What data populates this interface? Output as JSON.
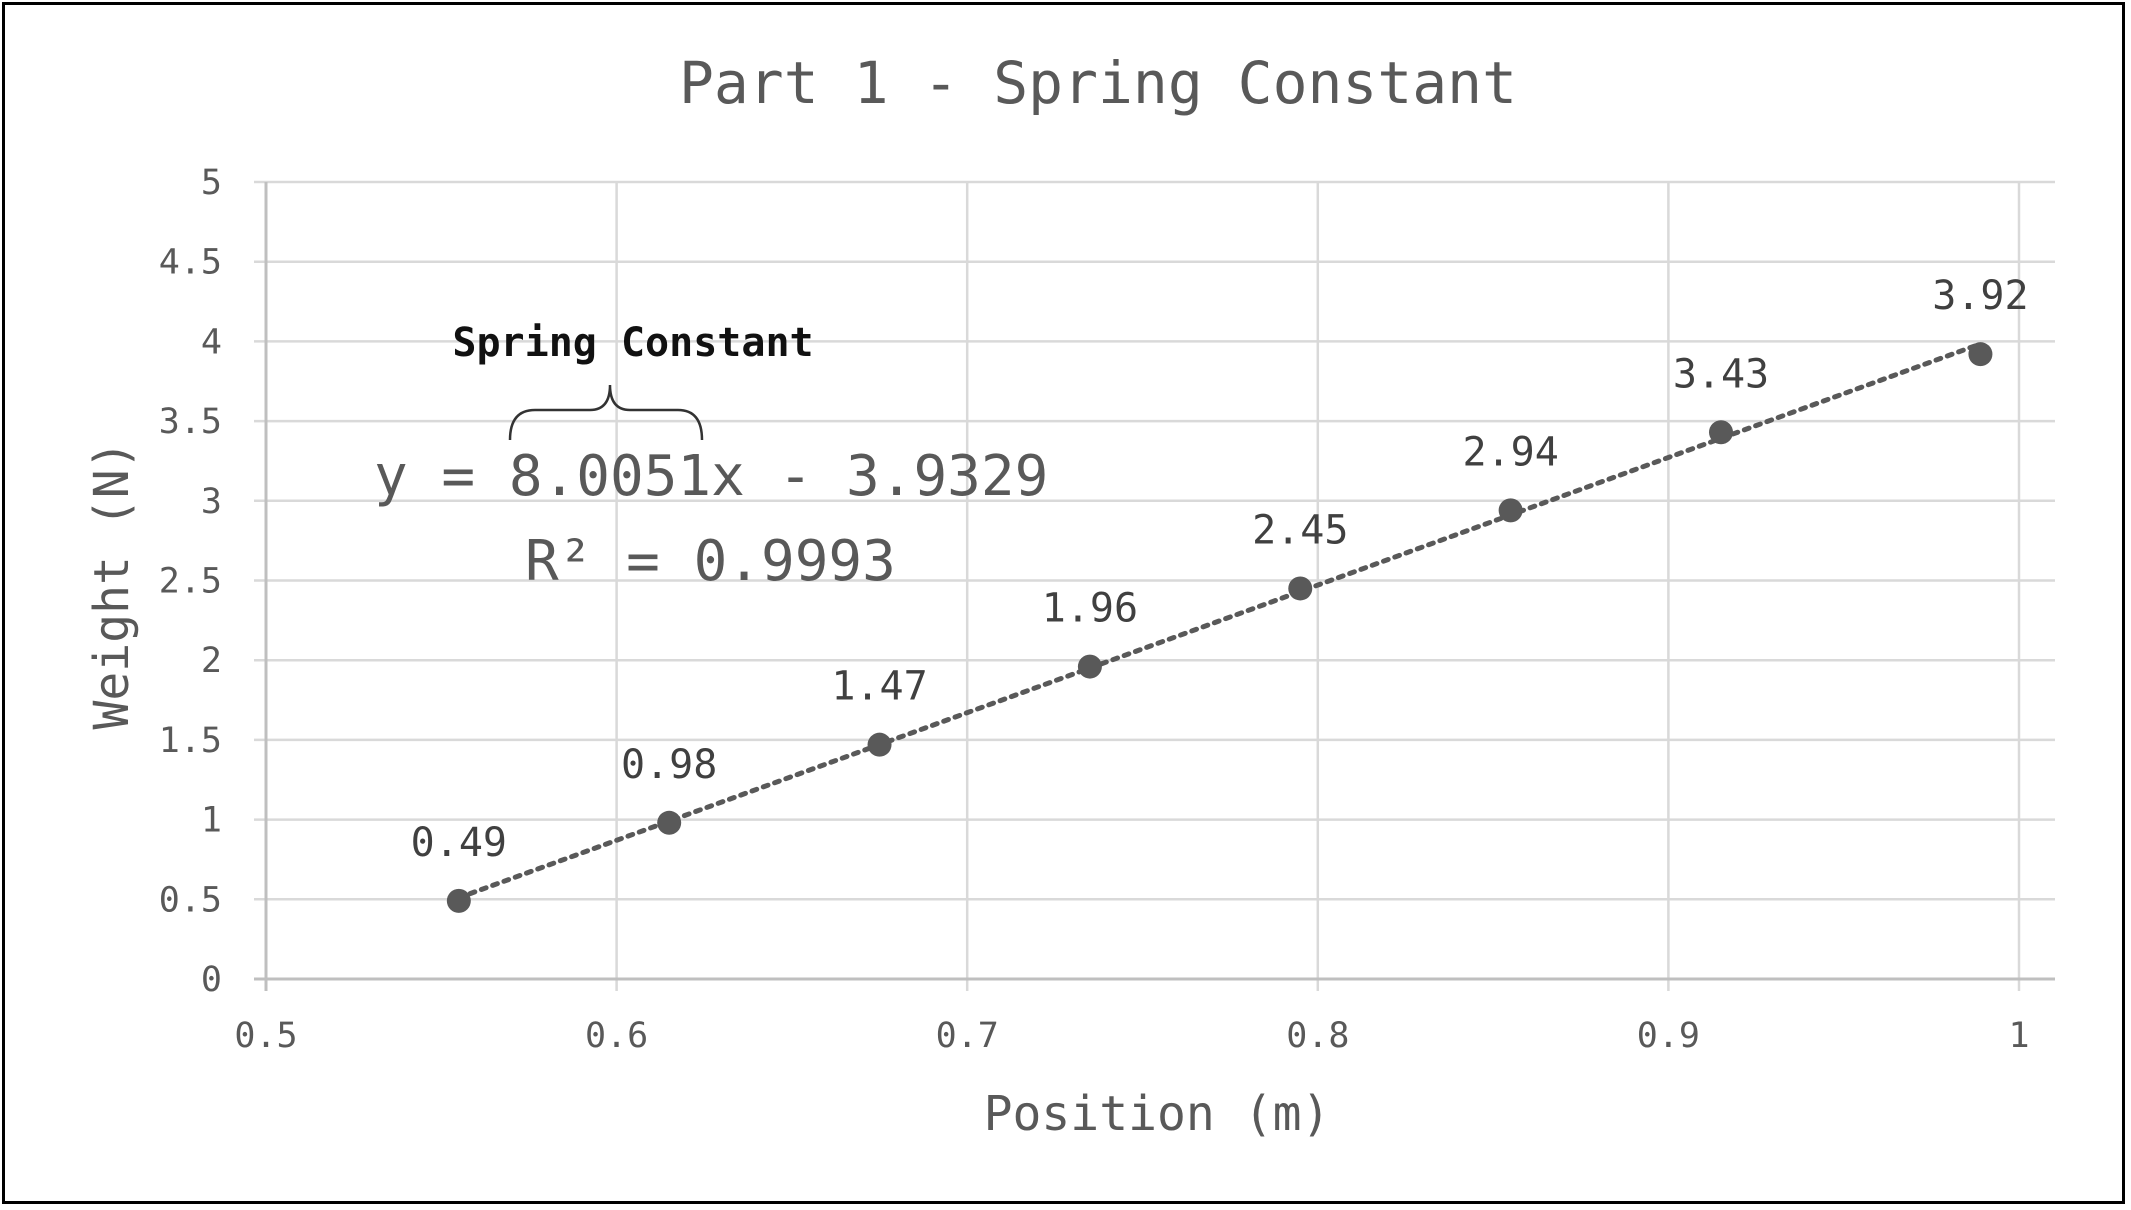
{
  "chart_data": {
    "type": "scatter",
    "title": "Part 1 - Spring Constant",
    "xlabel": "Position (m)",
    "ylabel": "Weight (N)",
    "xlim": [
      0.5,
      1
    ],
    "ylim": [
      0,
      5
    ],
    "x_ticks": [
      "0.5",
      "0.6",
      "0.7",
      "0.8",
      "0.9",
      "1"
    ],
    "y_ticks": [
      "0",
      "0.5",
      "1",
      "1.5",
      "2",
      "2.5",
      "3",
      "3.5",
      "4",
      "4.5",
      "5"
    ],
    "grid": true,
    "legend": "none",
    "x": [
      0.555,
      0.615,
      0.675,
      0.735,
      0.795,
      0.855,
      0.915,
      0.989
    ],
    "y": [
      0.49,
      0.98,
      1.47,
      1.96,
      2.45,
      2.94,
      3.43,
      3.92
    ],
    "data_labels": [
      "0.49",
      "0.98",
      "1.47",
      "1.96",
      "2.45",
      "2.94",
      "3.43",
      "3.92"
    ],
    "trendline": {
      "type": "linear",
      "style": "dotted",
      "equation": "y = 8.0051x - 3.9329",
      "r_squared": "R² = 0.9993",
      "slope": 8.0051,
      "intercept": -3.9329
    },
    "annotation": "Spring Constant",
    "colors": {
      "marker": "#595959",
      "text": "#595959",
      "grid": "#d9d9d9",
      "frame": "#000000"
    }
  }
}
